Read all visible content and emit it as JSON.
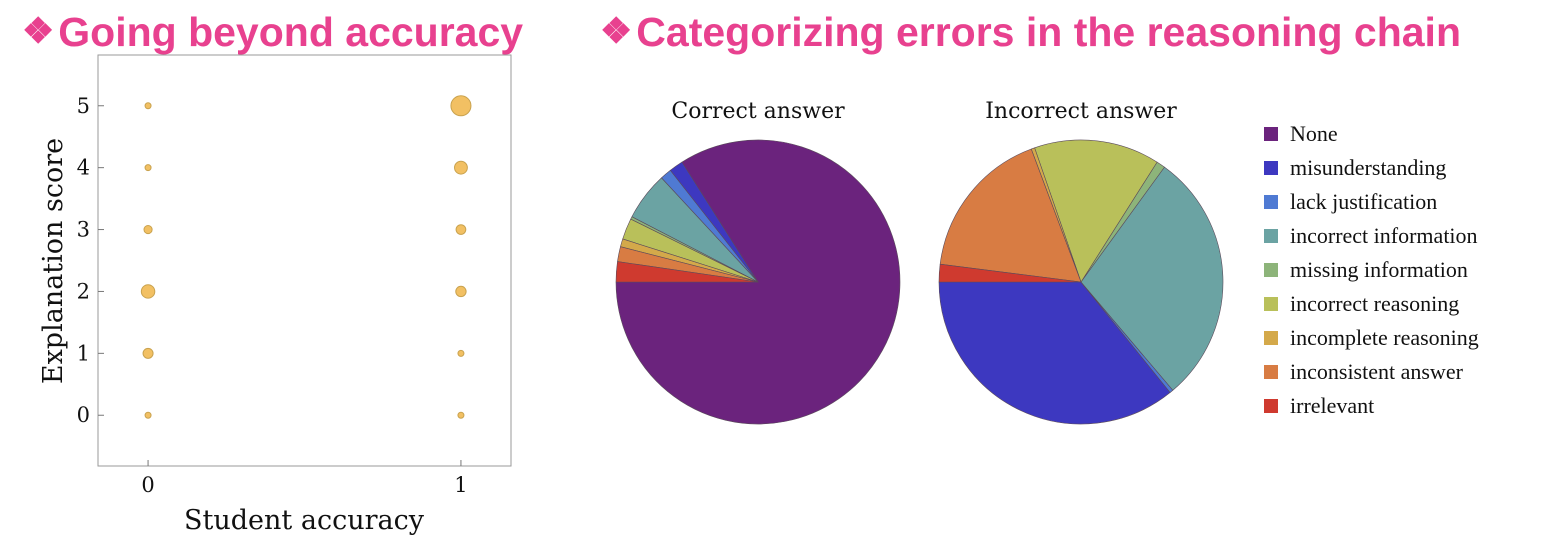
{
  "headings": {
    "left": {
      "icon": "diamond-icon",
      "glyph": "❖",
      "text": "Going beyond accuracy"
    },
    "right": {
      "icon": "diamond-icon",
      "glyph": "❖",
      "text": "Categorizing errors in the reasoning chain"
    },
    "color": "#e8418f"
  },
  "chart_data": [
    {
      "type": "scatter",
      "subtype": "bubble",
      "xlabel": "Student accuracy",
      "ylabel": "Explanation score",
      "xticks": [
        0,
        1
      ],
      "yticks": [
        0,
        1,
        2,
        3,
        4,
        5
      ],
      "xlim": [
        -0.16,
        1.16
      ],
      "ylim": [
        -0.82,
        5.82
      ],
      "grid": false,
      "color": "#f2c063",
      "edge_color": "#c9a24e",
      "points": [
        {
          "x": 0,
          "y": 0,
          "size": 0.19
        },
        {
          "x": 0,
          "y": 1,
          "size": 0.32
        },
        {
          "x": 0,
          "y": 2,
          "size": 0.43
        },
        {
          "x": 0,
          "y": 3,
          "size": 0.26
        },
        {
          "x": 0,
          "y": 4,
          "size": 0.15
        },
        {
          "x": 0,
          "y": 5,
          "size": 0.07
        },
        {
          "x": 1,
          "y": 0,
          "size": 0.07
        },
        {
          "x": 1,
          "y": 1,
          "size": 0.17
        },
        {
          "x": 1,
          "y": 2,
          "size": 0.33
        },
        {
          "x": 1,
          "y": 3,
          "size": 0.31
        },
        {
          "x": 1,
          "y": 4,
          "size": 0.41
        },
        {
          "x": 1,
          "y": 5,
          "size": 0.64
        }
      ]
    },
    {
      "type": "pie",
      "title": "Correct answer",
      "labels": [
        "None",
        "misunderstanding",
        "lack justification",
        "incorrect information",
        "missing information",
        "incorrect reasoning",
        "incomplete reasoning",
        "inconsistent answer",
        "irrelevant"
      ],
      "values": [
        84.0,
        1.6,
        1.3,
        5.5,
        0.3,
        2.4,
        0.9,
        1.7,
        2.3
      ]
    },
    {
      "type": "pie",
      "title": "Incorrect answer",
      "labels": [
        "None",
        "misunderstanding",
        "lack justification",
        "incorrect information",
        "missing information",
        "incorrect reasoning",
        "incomplete reasoning",
        "inconsistent answer",
        "irrelevant"
      ],
      "values": [
        0,
        35.8,
        0.4,
        28.8,
        1.0,
        14.3,
        0.4,
        17.3,
        2.0
      ]
    }
  ],
  "legend": {
    "position": "right",
    "items": [
      {
        "label": "None",
        "color": "#6b237d"
      },
      {
        "label": "misunderstanding",
        "color": "#3d38c0"
      },
      {
        "label": "lack justification",
        "color": "#4f7ad3"
      },
      {
        "label": "incorrect information",
        "color": "#6ba3a3"
      },
      {
        "label": "missing information",
        "color": "#8db47a"
      },
      {
        "label": "incorrect reasoning",
        "color": "#b9c05a"
      },
      {
        "label": "incomplete reasoning",
        "color": "#d4a94a"
      },
      {
        "label": "inconsistent answer",
        "color": "#d87c43"
      },
      {
        "label": "irrelevant",
        "color": "#cf3a2f"
      }
    ]
  }
}
